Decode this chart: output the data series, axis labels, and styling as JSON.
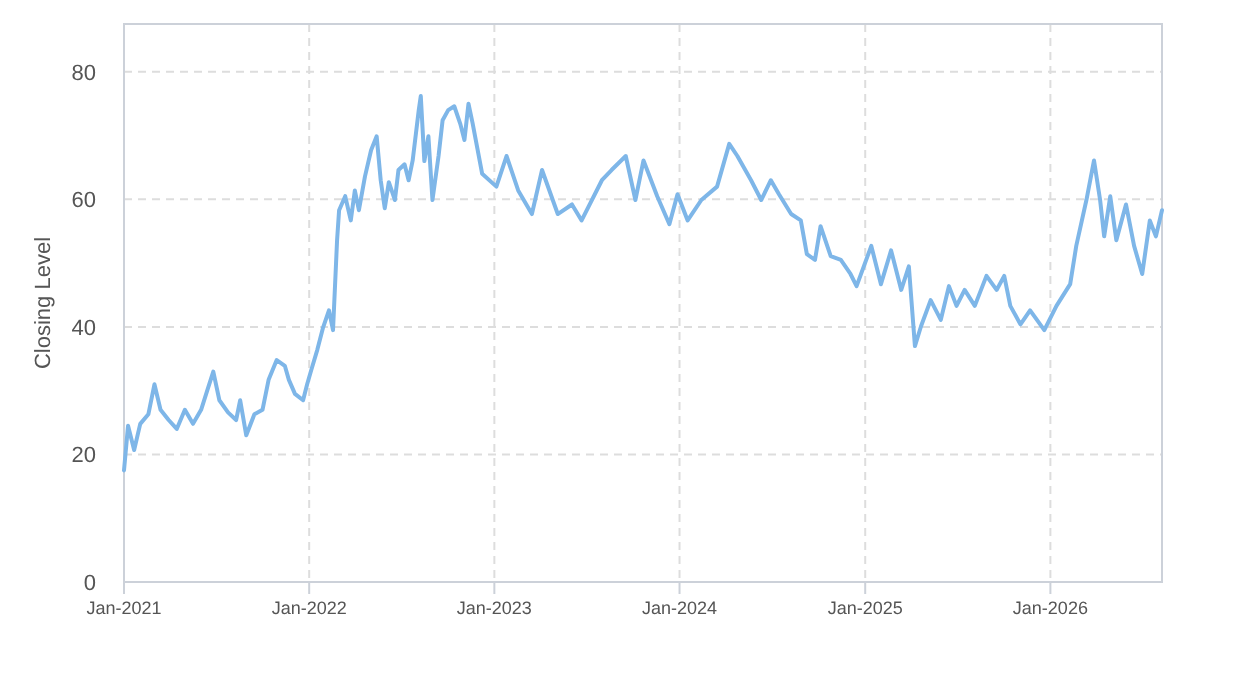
{
  "chart_data": {
    "type": "line",
    "ylabel": "Closing Level",
    "grid": true,
    "line_style": "solid",
    "marker": "none",
    "xlim": [
      "2021-01-01",
      "2026-08-09"
    ],
    "ylim": [
      0,
      87.5
    ],
    "yticks": [
      0,
      20,
      40,
      60,
      80
    ],
    "xticks": [
      {
        "value": "2021-01-01",
        "label": "Jan-2021"
      },
      {
        "value": "2022-01-01",
        "label": "Jan-2022"
      },
      {
        "value": "2023-01-01",
        "label": "Jan-2023"
      },
      {
        "value": "2024-01-01",
        "label": "Jan-2024"
      },
      {
        "value": "2025-01-01",
        "label": "Jan-2025"
      },
      {
        "value": "2026-01-01",
        "label": "Jan-2026"
      }
    ],
    "x": [
      "2021-01-01",
      "2021-01-09",
      "2021-01-21",
      "2021-02-02",
      "2021-02-18",
      "2021-03-02",
      "2021-03-14",
      "2021-03-30",
      "2021-04-15",
      "2021-05-01",
      "2021-05-17",
      "2021-06-02",
      "2021-06-14",
      "2021-06-26",
      "2021-07-08",
      "2021-07-25",
      "2021-08-10",
      "2021-08-18",
      "2021-08-30",
      "2021-09-15",
      "2021-10-01",
      "2021-10-13",
      "2021-10-29",
      "2021-11-14",
      "2021-11-22",
      "2021-12-04",
      "2021-12-20",
      "2021-12-28",
      "2022-01-05",
      "2022-01-17",
      "2022-01-28",
      "2022-02-09",
      "2022-02-17",
      "2022-02-25",
      "2022-03-01",
      "2022-03-13",
      "2022-03-24",
      "2022-04-01",
      "2022-04-09",
      "2022-04-21",
      "2022-05-03",
      "2022-05-14",
      "2022-05-22",
      "2022-05-30",
      "2022-06-07",
      "2022-06-19",
      "2022-06-26",
      "2022-07-08",
      "2022-07-16",
      "2022-07-24",
      "2022-08-05",
      "2022-08-09",
      "2022-08-16",
      "2022-08-24",
      "2022-09-01",
      "2022-09-13",
      "2022-09-21",
      "2022-10-02",
      "2022-10-14",
      "2022-10-26",
      "2022-11-03",
      "2022-11-11",
      "2022-11-19",
      "2022-12-08",
      "2023-01-05",
      "2023-01-25",
      "2023-02-17",
      "2023-03-16",
      "2023-04-05",
      "2023-05-06",
      "2023-06-03",
      "2023-06-22",
      "2023-08-01",
      "2023-08-20",
      "2023-09-17",
      "2023-10-06",
      "2023-10-22",
      "2023-11-18",
      "2023-12-12",
      "2023-12-28",
      "2024-01-17",
      "2024-02-13",
      "2024-03-15",
      "2024-04-08",
      "2024-04-24",
      "2024-05-21",
      "2024-06-10",
      "2024-06-29",
      "2024-07-15",
      "2024-08-08",
      "2024-08-27",
      "2024-09-08",
      "2024-09-24",
      "2024-10-05",
      "2024-10-25",
      "2024-11-14",
      "2024-12-03",
      "2024-12-15",
      "2025-01-13",
      "2025-02-01",
      "2025-02-21",
      "2025-03-13",
      "2025-03-28",
      "2025-04-09",
      "2025-04-21",
      "2025-05-10",
      "2025-05-30",
      "2025-06-15",
      "2025-06-30",
      "2025-07-16",
      "2025-08-05",
      "2025-08-28",
      "2025-09-17",
      "2025-10-02",
      "2025-10-14",
      "2025-11-03",
      "2025-11-22",
      "2025-12-20",
      "2026-01-13",
      "2026-02-09",
      "2026-02-21",
      "2026-03-13",
      "2026-03-28",
      "2026-04-09",
      "2026-04-17",
      "2026-04-29",
      "2026-05-11",
      "2026-05-30",
      "2026-06-15",
      "2026-07-01",
      "2026-07-16",
      "2026-07-28",
      "2026-08-09"
    ],
    "series": [
      {
        "color": "#7eb6e8",
        "values": [
          17.5,
          24.5,
          20.7,
          24.8,
          26.3,
          31,
          27,
          25.4,
          24,
          27,
          24.8,
          27,
          30,
          33,
          28.5,
          26.6,
          25.4,
          28.5,
          23,
          26.3,
          27,
          31.7,
          34.8,
          33.9,
          31.7,
          29.5,
          28.5,
          31,
          33.2,
          36.4,
          39.8,
          42.6,
          39.5,
          53.6,
          58.3,
          60.5,
          56.7,
          61.4,
          58.3,
          63.6,
          67.7,
          69.9,
          63,
          58.6,
          62.7,
          59.9,
          64.6,
          65.5,
          63,
          66.1,
          74,
          76.2,
          66,
          69.9,
          59.9,
          66.8,
          72.4,
          74,
          74.6,
          71.8,
          69.3,
          75,
          72,
          64,
          62,
          66.8,
          61.4,
          57.7,
          64.6,
          57.7,
          59.2,
          56.7,
          63,
          64.6,
          66.8,
          59.9,
          66.1,
          60.5,
          56.1,
          60.8,
          56.7,
          59.9,
          62,
          68.7,
          66.8,
          63,
          59.9,
          63,
          60.8,
          57.7,
          56.7,
          51.4,
          50.5,
          55.8,
          51.1,
          50.5,
          48.3,
          46.4,
          52.7,
          46.7,
          52,
          45.8,
          49.5,
          37,
          40.1,
          44.2,
          41.1,
          46.4,
          43.3,
          45.8,
          43.3,
          48,
          45.8,
          48,
          43.3,
          40.4,
          42.6,
          39.5,
          43.3,
          46.7,
          52.7,
          59.9,
          66.1,
          59.9,
          54.2,
          60.5,
          53.6,
          59.2,
          52.7,
          48.3,
          56.7,
          54.2,
          58.3
        ]
      }
    ]
  }
}
